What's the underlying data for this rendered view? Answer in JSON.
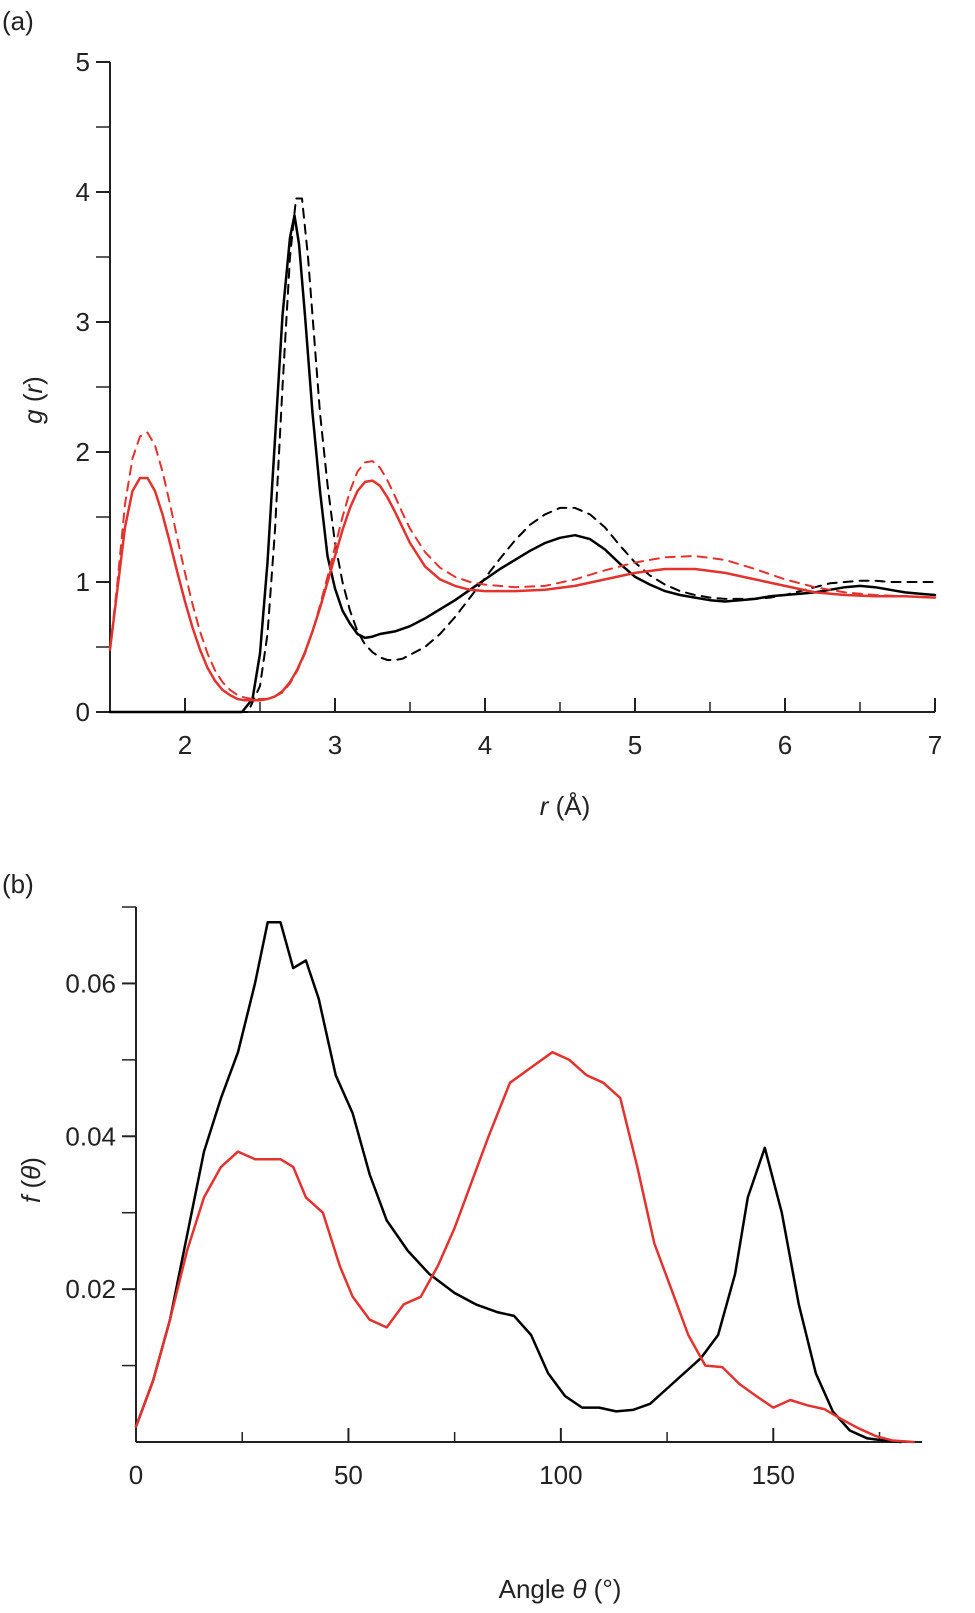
{
  "panels": [
    {
      "label": "(a)",
      "chart_data": {
        "type": "line",
        "xlabel": {
          "italic": "r",
          "rest": " (Å)"
        },
        "ylabel": {
          "italic": "g",
          "open": " (",
          "italic2": "r",
          "close": ")"
        },
        "xlim": [
          1.5,
          7
        ],
        "ylim": [
          0,
          5
        ],
        "x_ticks": [
          2,
          3,
          4,
          5,
          6,
          7
        ],
        "x_tick_labels": [
          "2",
          "3",
          "4",
          "5",
          "6",
          "7"
        ],
        "y_ticks": [
          0,
          1,
          2,
          3,
          4,
          5
        ],
        "y_tick_labels": [
          "0",
          "1",
          "2",
          "3",
          "4",
          "5"
        ],
        "grid": false,
        "series": [
          {
            "color": "#000000",
            "dash": false,
            "x": [
              1.5,
              2.3,
              2.38,
              2.45,
              2.5,
              2.55,
              2.6,
              2.65,
              2.7,
              2.73,
              2.76,
              2.8,
              2.85,
              2.9,
              2.95,
              3.0,
              3.05,
              3.1,
              3.15,
              3.2,
              3.25,
              3.3,
              3.4,
              3.5,
              3.6,
              3.7,
              3.8,
              3.9,
              4.0,
              4.1,
              4.2,
              4.3,
              4.4,
              4.5,
              4.6,
              4.7,
              4.8,
              4.9,
              5.0,
              5.1,
              5.2,
              5.3,
              5.4,
              5.5,
              5.6,
              5.7,
              5.8,
              5.9,
              6.0,
              6.1,
              6.2,
              6.3,
              6.4,
              6.5,
              6.6,
              6.7,
              6.8,
              6.9,
              7.0
            ],
            "y": [
              0,
              0,
              0,
              0.1,
              0.45,
              1.15,
              2.1,
              3.05,
              3.65,
              3.82,
              3.6,
              3.05,
              2.3,
              1.7,
              1.2,
              0.95,
              0.78,
              0.68,
              0.6,
              0.57,
              0.58,
              0.6,
              0.62,
              0.66,
              0.72,
              0.79,
              0.86,
              0.94,
              1.02,
              1.1,
              1.17,
              1.24,
              1.3,
              1.34,
              1.36,
              1.33,
              1.25,
              1.14,
              1.04,
              0.98,
              0.93,
              0.9,
              0.88,
              0.86,
              0.85,
              0.86,
              0.87,
              0.89,
              0.9,
              0.91,
              0.92,
              0.94,
              0.96,
              0.97,
              0.96,
              0.94,
              0.92,
              0.91,
              0.9
            ]
          },
          {
            "color": "#000000",
            "dash": true,
            "x": [
              1.5,
              2.35,
              2.42,
              2.5,
              2.55,
              2.6,
              2.65,
              2.7,
              2.74,
              2.78,
              2.82,
              2.86,
              2.9,
              2.95,
              3.0,
              3.05,
              3.1,
              3.15,
              3.2,
              3.25,
              3.3,
              3.35,
              3.4,
              3.45,
              3.5,
              3.6,
              3.7,
              3.8,
              3.9,
              4.0,
              4.1,
              4.2,
              4.3,
              4.4,
              4.5,
              4.6,
              4.7,
              4.8,
              4.9,
              5.0,
              5.1,
              5.2,
              5.3,
              5.4,
              5.5,
              5.6,
              5.7,
              5.8,
              5.9,
              6.0,
              6.1,
              6.2,
              6.3,
              6.4,
              6.5,
              6.6,
              6.7,
              6.8,
              6.9,
              7.0
            ],
            "y": [
              0,
              0,
              0,
              0.2,
              0.6,
              1.4,
              2.5,
              3.5,
              3.95,
              3.95,
              3.5,
              2.9,
              2.3,
              1.75,
              1.3,
              1.0,
              0.78,
              0.62,
              0.52,
              0.46,
              0.42,
              0.4,
              0.4,
              0.41,
              0.44,
              0.5,
              0.6,
              0.73,
              0.88,
              1.03,
              1.18,
              1.32,
              1.44,
              1.52,
              1.57,
              1.57,
              1.52,
              1.42,
              1.28,
              1.15,
              1.05,
              0.98,
              0.93,
              0.9,
              0.88,
              0.87,
              0.87,
              0.87,
              0.88,
              0.9,
              0.93,
              0.96,
              0.99,
              1.0,
              1.01,
              1.01,
              1.0,
              1.0,
              1.0,
              1.0
            ]
          },
          {
            "color": "#e2332e",
            "dash": false,
            "x": [
              1.5,
              1.55,
              1.6,
              1.65,
              1.7,
              1.75,
              1.8,
              1.85,
              1.9,
              1.95,
              2.0,
              2.05,
              2.1,
              2.15,
              2.2,
              2.25,
              2.3,
              2.35,
              2.4,
              2.45,
              2.5,
              2.55,
              2.6,
              2.65,
              2.7,
              2.75,
              2.8,
              2.85,
              2.9,
              2.95,
              3.0,
              3.05,
              3.1,
              3.15,
              3.2,
              3.25,
              3.3,
              3.35,
              3.4,
              3.45,
              3.5,
              3.6,
              3.7,
              3.8,
              3.9,
              4.0,
              4.2,
              4.4,
              4.6,
              4.8,
              5.0,
              5.2,
              5.4,
              5.6,
              5.8,
              6.0,
              6.2,
              6.4,
              6.6,
              6.8,
              7.0
            ],
            "y": [
              0.48,
              0.95,
              1.42,
              1.7,
              1.8,
              1.8,
              1.7,
              1.52,
              1.3,
              1.07,
              0.85,
              0.65,
              0.48,
              0.34,
              0.24,
              0.17,
              0.13,
              0.1,
              0.09,
              0.09,
              0.09,
              0.1,
              0.12,
              0.16,
              0.23,
              0.33,
              0.46,
              0.62,
              0.8,
              1.0,
              1.2,
              1.4,
              1.57,
              1.7,
              1.77,
              1.78,
              1.74,
              1.65,
              1.54,
              1.42,
              1.3,
              1.12,
              1.02,
              0.97,
              0.94,
              0.93,
              0.93,
              0.94,
              0.97,
              1.02,
              1.07,
              1.1,
              1.1,
              1.07,
              1.02,
              0.97,
              0.92,
              0.9,
              0.89,
              0.89,
              0.88
            ]
          },
          {
            "color": "#e2332e",
            "dash": true,
            "x": [
              1.5,
              1.55,
              1.6,
              1.65,
              1.7,
              1.75,
              1.8,
              1.85,
              1.9,
              1.95,
              2.0,
              2.05,
              2.1,
              2.15,
              2.2,
              2.25,
              2.3,
              2.35,
              2.4,
              2.45,
              2.5,
              2.55,
              2.6,
              2.65,
              2.7,
              2.75,
              2.8,
              2.85,
              2.9,
              2.95,
              3.0,
              3.05,
              3.1,
              3.15,
              3.2,
              3.25,
              3.3,
              3.35,
              3.4,
              3.45,
              3.5,
              3.6,
              3.7,
              3.8,
              3.9,
              4.0,
              4.2,
              4.4,
              4.6,
              4.8,
              5.0,
              5.2,
              5.4,
              5.6,
              5.8,
              6.0,
              6.2,
              6.4,
              6.6,
              6.8,
              7.0
            ],
            "y": [
              0.48,
              1.0,
              1.6,
              1.95,
              2.12,
              2.15,
              2.05,
              1.85,
              1.6,
              1.33,
              1.07,
              0.83,
              0.62,
              0.45,
              0.32,
              0.23,
              0.17,
              0.13,
              0.11,
              0.1,
              0.1,
              0.1,
              0.12,
              0.15,
              0.22,
              0.32,
              0.45,
              0.62,
              0.82,
              1.04,
              1.27,
              1.5,
              1.7,
              1.85,
              1.92,
              1.93,
              1.88,
              1.78,
              1.66,
              1.53,
              1.41,
              1.23,
              1.11,
              1.04,
              1.0,
              0.98,
              0.96,
              0.97,
              1.02,
              1.09,
              1.15,
              1.19,
              1.2,
              1.17,
              1.1,
              1.02,
              0.96,
              0.92,
              0.9,
              0.89,
              0.88
            ]
          }
        ]
      }
    },
    {
      "label": "(b)",
      "chart_data": {
        "type": "line",
        "xlabel": {
          "rest1": "Angle ",
          "italic": "θ",
          "rest": " (°)"
        },
        "ylabel": {
          "italic": "f",
          "open": " (",
          "italic2": "θ",
          "close": ")"
        },
        "xlim": [
          0,
          185
        ],
        "ylim": [
          0,
          0.07
        ],
        "x_ticks": [
          0,
          50,
          100,
          150
        ],
        "x_tick_labels": [
          "0",
          "50",
          "100",
          "150"
        ],
        "y_ticks": [
          0.02,
          0.04,
          0.06
        ],
        "y_tick_labels": [
          "0.02",
          "0.04",
          "0.06"
        ],
        "grid": false,
        "series": [
          {
            "color": "#000000",
            "dash": false,
            "x": [
              0,
              4,
              8,
              12,
              16,
              20,
              24,
              28,
              31,
              34,
              37,
              40,
              43,
              47,
              51,
              55,
              59,
              64,
              69,
              75,
              80,
              85,
              89,
              93,
              97,
              101,
              105,
              109,
              113,
              117,
              121,
              125,
              129,
              133,
              137,
              141,
              144,
              148,
              152,
              156,
              160,
              164,
              168,
              172,
              176,
              180
            ],
            "y": [
              0.002,
              0.008,
              0.016,
              0.027,
              0.038,
              0.045,
              0.051,
              0.06,
              0.068,
              0.068,
              0.062,
              0.063,
              0.058,
              0.048,
              0.043,
              0.035,
              0.029,
              0.025,
              0.022,
              0.0195,
              0.018,
              0.017,
              0.0165,
              0.014,
              0.009,
              0.006,
              0.0045,
              0.0045,
              0.004,
              0.0042,
              0.005,
              0.007,
              0.009,
              0.011,
              0.014,
              0.022,
              0.032,
              0.0385,
              0.03,
              0.018,
              0.009,
              0.004,
              0.0015,
              0.0005,
              0.0002,
              0.0
            ]
          },
          {
            "color": "#e2332e",
            "dash": false,
            "x": [
              0,
              4,
              8,
              12,
              16,
              20,
              24,
              28,
              31,
              34,
              37,
              40,
              44,
              48,
              51,
              55,
              59,
              63,
              67,
              71,
              75,
              79,
              83,
              88,
              93,
              98,
              102,
              106,
              110,
              114,
              118,
              122,
              126,
              130,
              134,
              138,
              142,
              146,
              150,
              154,
              158,
              162,
              166,
              170,
              174,
              178,
              183
            ],
            "y": [
              0.002,
              0.008,
              0.016,
              0.025,
              0.032,
              0.036,
              0.038,
              0.037,
              0.037,
              0.037,
              0.036,
              0.032,
              0.03,
              0.023,
              0.019,
              0.016,
              0.015,
              0.018,
              0.019,
              0.023,
              0.028,
              0.034,
              0.04,
              0.047,
              0.049,
              0.051,
              0.05,
              0.048,
              0.047,
              0.045,
              0.036,
              0.026,
              0.02,
              0.014,
              0.01,
              0.0098,
              0.0076,
              0.006,
              0.0045,
              0.0055,
              0.0048,
              0.0043,
              0.003,
              0.0018,
              0.0008,
              0.0002,
              0.0
            ]
          }
        ]
      }
    }
  ]
}
